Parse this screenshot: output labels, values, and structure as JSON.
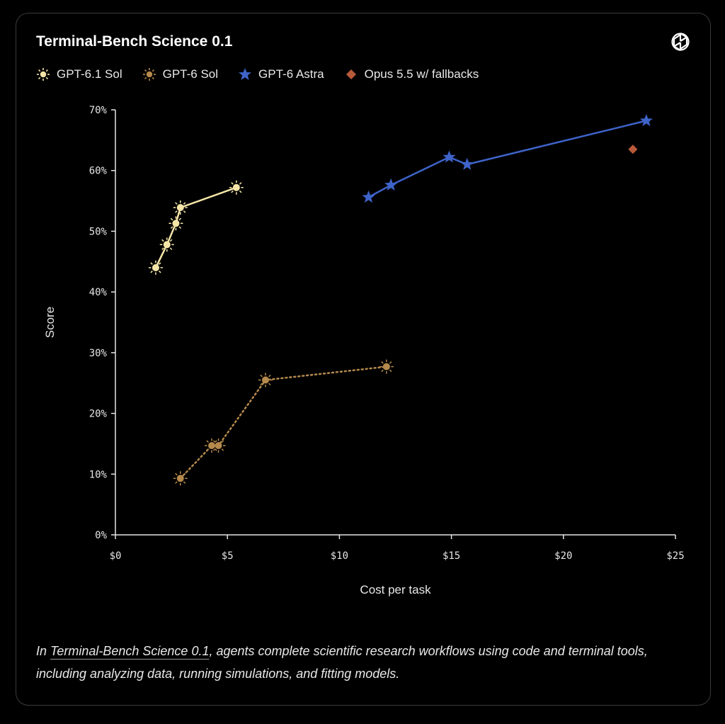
{
  "card": {
    "title": "Terminal-Bench Science 0.1",
    "caption": {
      "prefix": "In ",
      "link": "Terminal-Bench Science 0.1",
      "suffix": ", agents complete scientific research workflows using code and terminal tools, including analyzing data, running simulations, and fitting models."
    }
  },
  "chart_data": {
    "type": "line",
    "title": "Terminal-Bench Science 0.1",
    "xlabel": "Cost per task",
    "ylabel": "Score",
    "xlim": [
      0,
      25
    ],
    "ylim": [
      0,
      70
    ],
    "xticks": [
      0,
      5,
      10,
      15,
      20,
      25
    ],
    "xtick_labels": [
      "$0",
      "$5",
      "$10",
      "$15",
      "$20",
      "$25"
    ],
    "yticks": [
      0,
      10,
      20,
      30,
      40,
      50,
      60,
      70
    ],
    "ytick_labels": [
      "0%",
      "10%",
      "20%",
      "30%",
      "40%",
      "50%",
      "60%",
      "70%"
    ],
    "grid": false,
    "legend_position": "top-left",
    "series": [
      {
        "name": "GPT-6.1 Sol",
        "marker": "sun",
        "color": "#f5e6a8",
        "line": "solid",
        "points": [
          [
            1.8,
            44.0
          ],
          [
            2.3,
            47.8
          ],
          [
            2.7,
            51.3
          ],
          [
            2.9,
            53.9
          ],
          [
            5.4,
            57.2
          ]
        ]
      },
      {
        "name": "GPT-6 Sol",
        "marker": "sun",
        "color": "#b58a4c",
        "line": "dotted",
        "points": [
          [
            2.9,
            9.3
          ],
          [
            4.3,
            14.7
          ],
          [
            4.6,
            14.7
          ],
          [
            6.7,
            25.5
          ],
          [
            12.1,
            27.7
          ]
        ]
      },
      {
        "name": "GPT-6 Astra",
        "marker": "star",
        "color": "#3e63c9",
        "line": "solid",
        "points": [
          [
            11.3,
            55.6
          ],
          [
            12.3,
            57.6
          ],
          [
            14.9,
            62.2
          ],
          [
            15.7,
            61.0
          ],
          [
            23.7,
            68.2
          ]
        ]
      },
      {
        "name": "Opus 5.5 w/ fallbacks",
        "marker": "diamond",
        "color": "#b85a3a",
        "line": "none",
        "points": [
          [
            23.1,
            63.5
          ]
        ]
      }
    ]
  }
}
